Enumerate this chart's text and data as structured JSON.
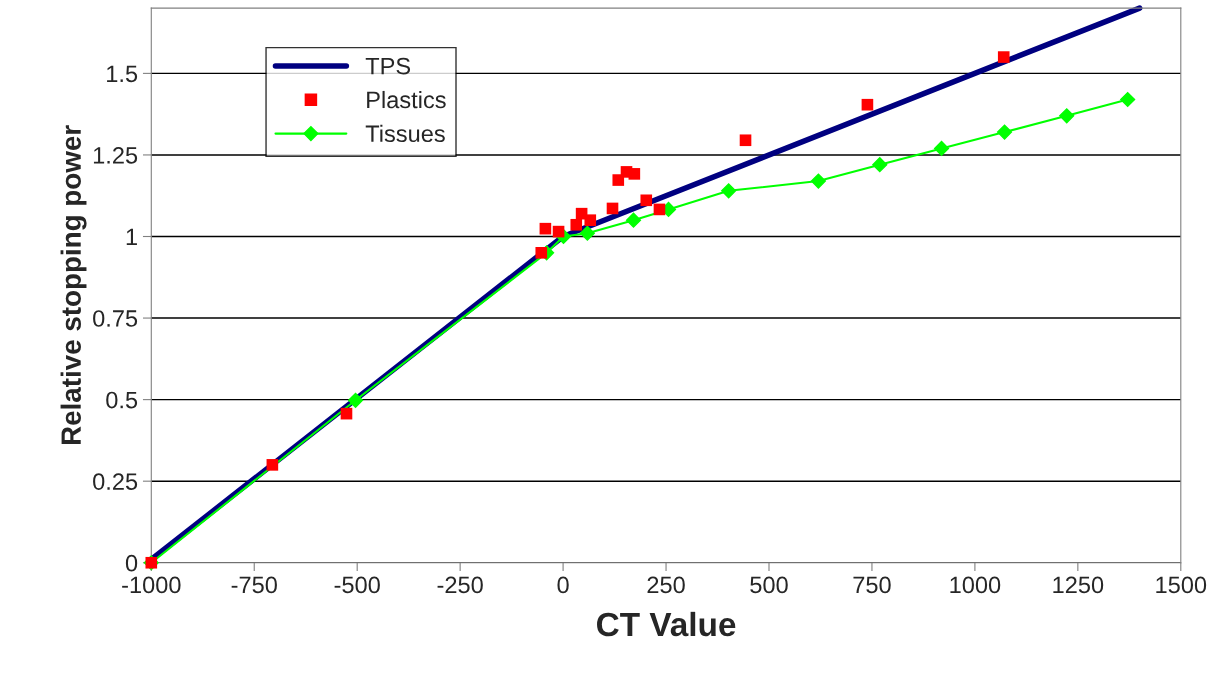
{
  "chart_data": {
    "type": "line",
    "xlabel": "CT Value",
    "ylabel": "Relative stopping power",
    "xlim": [
      -1000,
      1500
    ],
    "xticks": [
      -1000,
      -750,
      -500,
      -250,
      0,
      250,
      500,
      750,
      1000,
      1250,
      1500
    ],
    "ylim": [
      0,
      1.7
    ],
    "yticks": [
      0,
      0.25,
      0.5,
      0.75,
      1,
      1.25,
      1.5
    ],
    "grid": "y",
    "legend": "top left",
    "series": [
      {
        "name": "TPS",
        "color": "#000080",
        "marker": "none",
        "x": [
          -1000,
          0,
          1400
        ],
        "values": [
          0.01,
          1.0,
          1.7
        ]
      },
      {
        "name": "Plastics",
        "type": "scatter",
        "color": "#ff0000",
        "marker": "square",
        "x": [
          -1000,
          -706,
          -526,
          -53,
          -43,
          -11,
          32,
          45,
          66,
          120,
          134,
          154,
          173,
          202,
          234,
          443,
          739,
          1070
        ],
        "values": [
          0,
          0.3,
          0.457,
          0.95,
          1.024,
          1.015,
          1.036,
          1.07,
          1.05,
          1.086,
          1.173,
          1.198,
          1.192,
          1.111,
          1.083,
          1.295,
          1.404,
          1.55
        ]
      },
      {
        "name": "Tissues",
        "color": "#00ff00",
        "marker": "diamond",
        "x": [
          -1000,
          -504,
          -40,
          1,
          59,
          171,
          256,
          402,
          620,
          769,
          919,
          1072,
          1223,
          1371
        ],
        "values": [
          0,
          0.498,
          0.95,
          1.0,
          1.01,
          1.05,
          1.083,
          1.14,
          1.17,
          1.22,
          1.27,
          1.32,
          1.37,
          1.42
        ]
      }
    ]
  }
}
